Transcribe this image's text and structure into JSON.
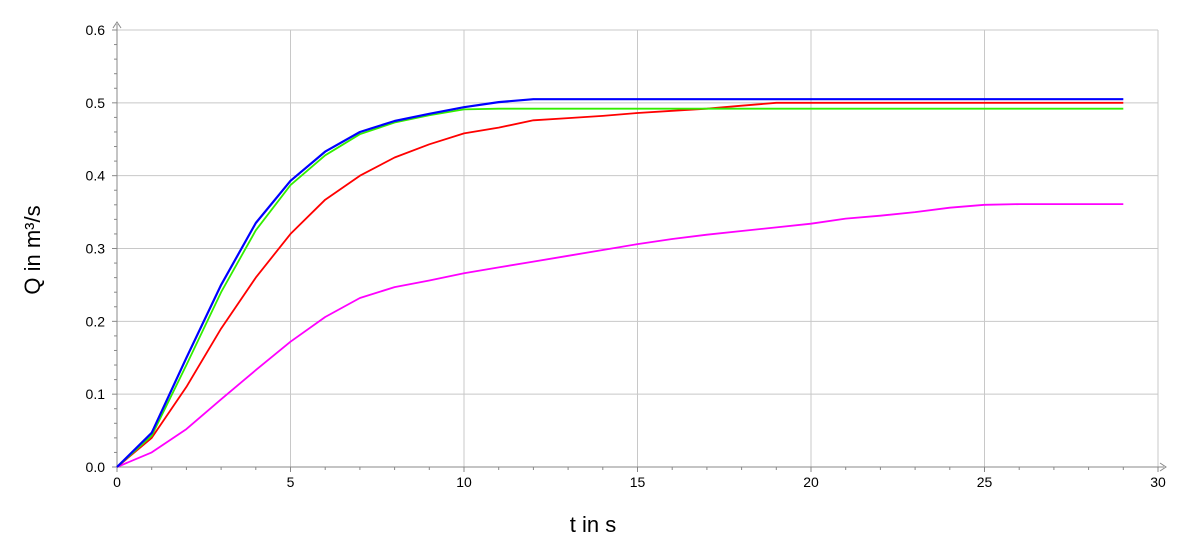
{
  "chart_data": {
    "type": "line",
    "title": "",
    "xlabel": "t in s",
    "ylabel": "Q in m³/s",
    "xlim": [
      0,
      30
    ],
    "ylim": [
      0,
      0.6
    ],
    "xticks": [
      "0",
      "5",
      "10",
      "15",
      "20",
      "25",
      "30"
    ],
    "yticks": [
      "0.0",
      "0.1",
      "0.2",
      "0.3",
      "0.4",
      "0.5",
      "0.6"
    ],
    "grid": true,
    "legend": "none",
    "x": [
      0,
      1,
      2,
      3,
      4,
      5,
      6,
      7,
      8,
      9,
      10,
      11,
      12,
      13,
      14,
      15,
      16,
      17,
      18,
      19,
      20,
      21,
      22,
      23,
      24,
      25,
      26,
      27,
      28,
      29
    ],
    "series": [
      {
        "color": "#ff00ff",
        "values": [
          0,
          0.02,
          0.052,
          0.093,
          0.133,
          0.172,
          0.206,
          0.232,
          0.247,
          0.256,
          0.266,
          0.274,
          0.282,
          0.29,
          0.298,
          0.306,
          0.313,
          0.319,
          0.324,
          0.329,
          0.334,
          0.341,
          0.345,
          0.35,
          0.356,
          0.36,
          0.361,
          0.361,
          0.361,
          0.361
        ]
      },
      {
        "color": "#ff0000",
        "values": [
          0,
          0.04,
          0.11,
          0.19,
          0.26,
          0.32,
          0.367,
          0.4,
          0.425,
          0.443,
          0.458,
          0.466,
          0.476,
          0.479,
          0.482,
          0.486,
          0.489,
          0.492,
          0.496,
          0.5,
          0.5,
          0.5,
          0.5,
          0.5,
          0.5,
          0.5,
          0.5,
          0.5,
          0.5,
          0.5
        ]
      },
      {
        "color": "#33ee00",
        "values": [
          0,
          0.043,
          0.14,
          0.24,
          0.325,
          0.387,
          0.428,
          0.457,
          0.473,
          0.483,
          0.491,
          0.492,
          0.492,
          0.492,
          0.492,
          0.492,
          0.492,
          0.492,
          0.492,
          0.492,
          0.492,
          0.492,
          0.492,
          0.492,
          0.492,
          0.492,
          0.492,
          0.492,
          0.492,
          0.492
        ]
      },
      {
        "color": "#0000ff",
        "values": [
          0,
          0.047,
          0.15,
          0.25,
          0.335,
          0.393,
          0.433,
          0.46,
          0.475,
          0.485,
          0.494,
          0.501,
          0.505,
          0.505,
          0.505,
          0.505,
          0.505,
          0.505,
          0.505,
          0.505,
          0.505,
          0.505,
          0.505,
          0.505,
          0.505,
          0.505,
          0.505,
          0.505,
          0.505,
          0.505
        ]
      }
    ]
  }
}
